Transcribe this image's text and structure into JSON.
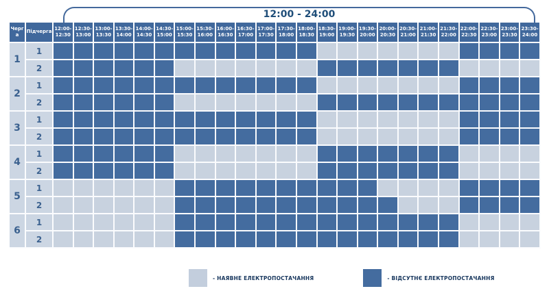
{
  "title": "12:00 - 24:00",
  "table": {
    "queue_header": "Черга",
    "subqueue_header": "Підчерга"
  },
  "legend": {
    "available_label": "- НАЯВНЕ ЕЛЕКТРОПОСТАЧАННЯ",
    "absent_label": "- ВІДСУТНЄ ЕЛЕКТРОПОСТАЧАННЯ"
  },
  "colors": {
    "available_cell": "#c8d2df",
    "outage_cell": "#446c9f",
    "header_bg": "#40689c",
    "label_cell_bg": "#ccd6e3",
    "accent_text": "#1f4e79"
  },
  "chart_data": {
    "type": "heatmap",
    "title": "12:00 - 24:00",
    "x_labels": [
      "12:00-12:30",
      "12:30-13:00",
      "13:00-13:30",
      "13:30-14:00",
      "14:00-14:30",
      "14:30-15:00",
      "15:00-15:30",
      "15:30-16:00",
      "16:00-16:30",
      "16:30-17:00",
      "17:00-17:30",
      "17:30-18:00",
      "18:00-18:30",
      "18:30-19:00",
      "19:00-19:30",
      "19:30-20:00",
      "20:00-20:30",
      "20:30-21:00",
      "21:00-21:30",
      "21:30-22:00",
      "22:00-22:30",
      "22:30-23:00",
      "23:00-23:30",
      "23:30-24:00"
    ],
    "value_legend": {
      "0": "наявне електропостачання",
      "1": "відсутнє електропостачання"
    },
    "rows": [
      {
        "queue": "1",
        "subqueue": "1",
        "outage": [
          1,
          1,
          1,
          1,
          1,
          1,
          1,
          1,
          1,
          1,
          1,
          1,
          1,
          0,
          0,
          0,
          0,
          0,
          0,
          0,
          1,
          1,
          1,
          1
        ]
      },
      {
        "queue": "1",
        "subqueue": "2",
        "outage": [
          1,
          1,
          1,
          1,
          1,
          1,
          0,
          0,
          0,
          0,
          0,
          0,
          0,
          1,
          1,
          1,
          1,
          1,
          1,
          1,
          0,
          0,
          0,
          0
        ]
      },
      {
        "queue": "2",
        "subqueue": "1",
        "outage": [
          1,
          1,
          1,
          1,
          1,
          1,
          1,
          1,
          1,
          1,
          1,
          1,
          1,
          0,
          0,
          0,
          0,
          0,
          0,
          0,
          1,
          1,
          1,
          1
        ]
      },
      {
        "queue": "2",
        "subqueue": "2",
        "outage": [
          1,
          1,
          1,
          1,
          1,
          1,
          0,
          0,
          0,
          0,
          0,
          0,
          0,
          1,
          1,
          1,
          1,
          1,
          1,
          1,
          1,
          1,
          1,
          1
        ]
      },
      {
        "queue": "3",
        "subqueue": "1",
        "outage": [
          1,
          1,
          1,
          1,
          1,
          1,
          1,
          1,
          1,
          1,
          1,
          1,
          1,
          0,
          0,
          0,
          0,
          0,
          0,
          0,
          1,
          1,
          1,
          1
        ]
      },
      {
        "queue": "3",
        "subqueue": "2",
        "outage": [
          1,
          1,
          1,
          1,
          1,
          1,
          1,
          1,
          1,
          1,
          1,
          1,
          1,
          0,
          0,
          0,
          0,
          0,
          0,
          0,
          1,
          1,
          1,
          1
        ]
      },
      {
        "queue": "4",
        "subqueue": "1",
        "outage": [
          1,
          1,
          1,
          1,
          1,
          1,
          0,
          0,
          0,
          0,
          0,
          0,
          0,
          1,
          1,
          1,
          1,
          1,
          1,
          1,
          0,
          0,
          0,
          0
        ]
      },
      {
        "queue": "4",
        "subqueue": "2",
        "outage": [
          1,
          1,
          1,
          1,
          1,
          1,
          0,
          0,
          0,
          0,
          0,
          0,
          0,
          1,
          1,
          1,
          1,
          1,
          1,
          1,
          0,
          0,
          0,
          0
        ]
      },
      {
        "queue": "5",
        "subqueue": "1",
        "outage": [
          0,
          0,
          0,
          0,
          0,
          0,
          1,
          1,
          1,
          1,
          1,
          1,
          1,
          1,
          1,
          1,
          0,
          0,
          0,
          0,
          1,
          1,
          1,
          1
        ]
      },
      {
        "queue": "5",
        "subqueue": "2",
        "outage": [
          0,
          0,
          0,
          0,
          0,
          0,
          1,
          1,
          1,
          1,
          1,
          1,
          1,
          1,
          1,
          1,
          1,
          0,
          0,
          0,
          1,
          1,
          1,
          1
        ]
      },
      {
        "queue": "6",
        "subqueue": "1",
        "outage": [
          0,
          0,
          0,
          0,
          0,
          0,
          1,
          1,
          1,
          1,
          1,
          1,
          1,
          1,
          1,
          1,
          1,
          1,
          1,
          1,
          0,
          0,
          0,
          0
        ]
      },
      {
        "queue": "6",
        "subqueue": "2",
        "outage": [
          0,
          0,
          0,
          0,
          0,
          0,
          1,
          1,
          1,
          1,
          1,
          1,
          1,
          1,
          1,
          1,
          1,
          1,
          1,
          1,
          0,
          0,
          0,
          0
        ]
      }
    ]
  }
}
